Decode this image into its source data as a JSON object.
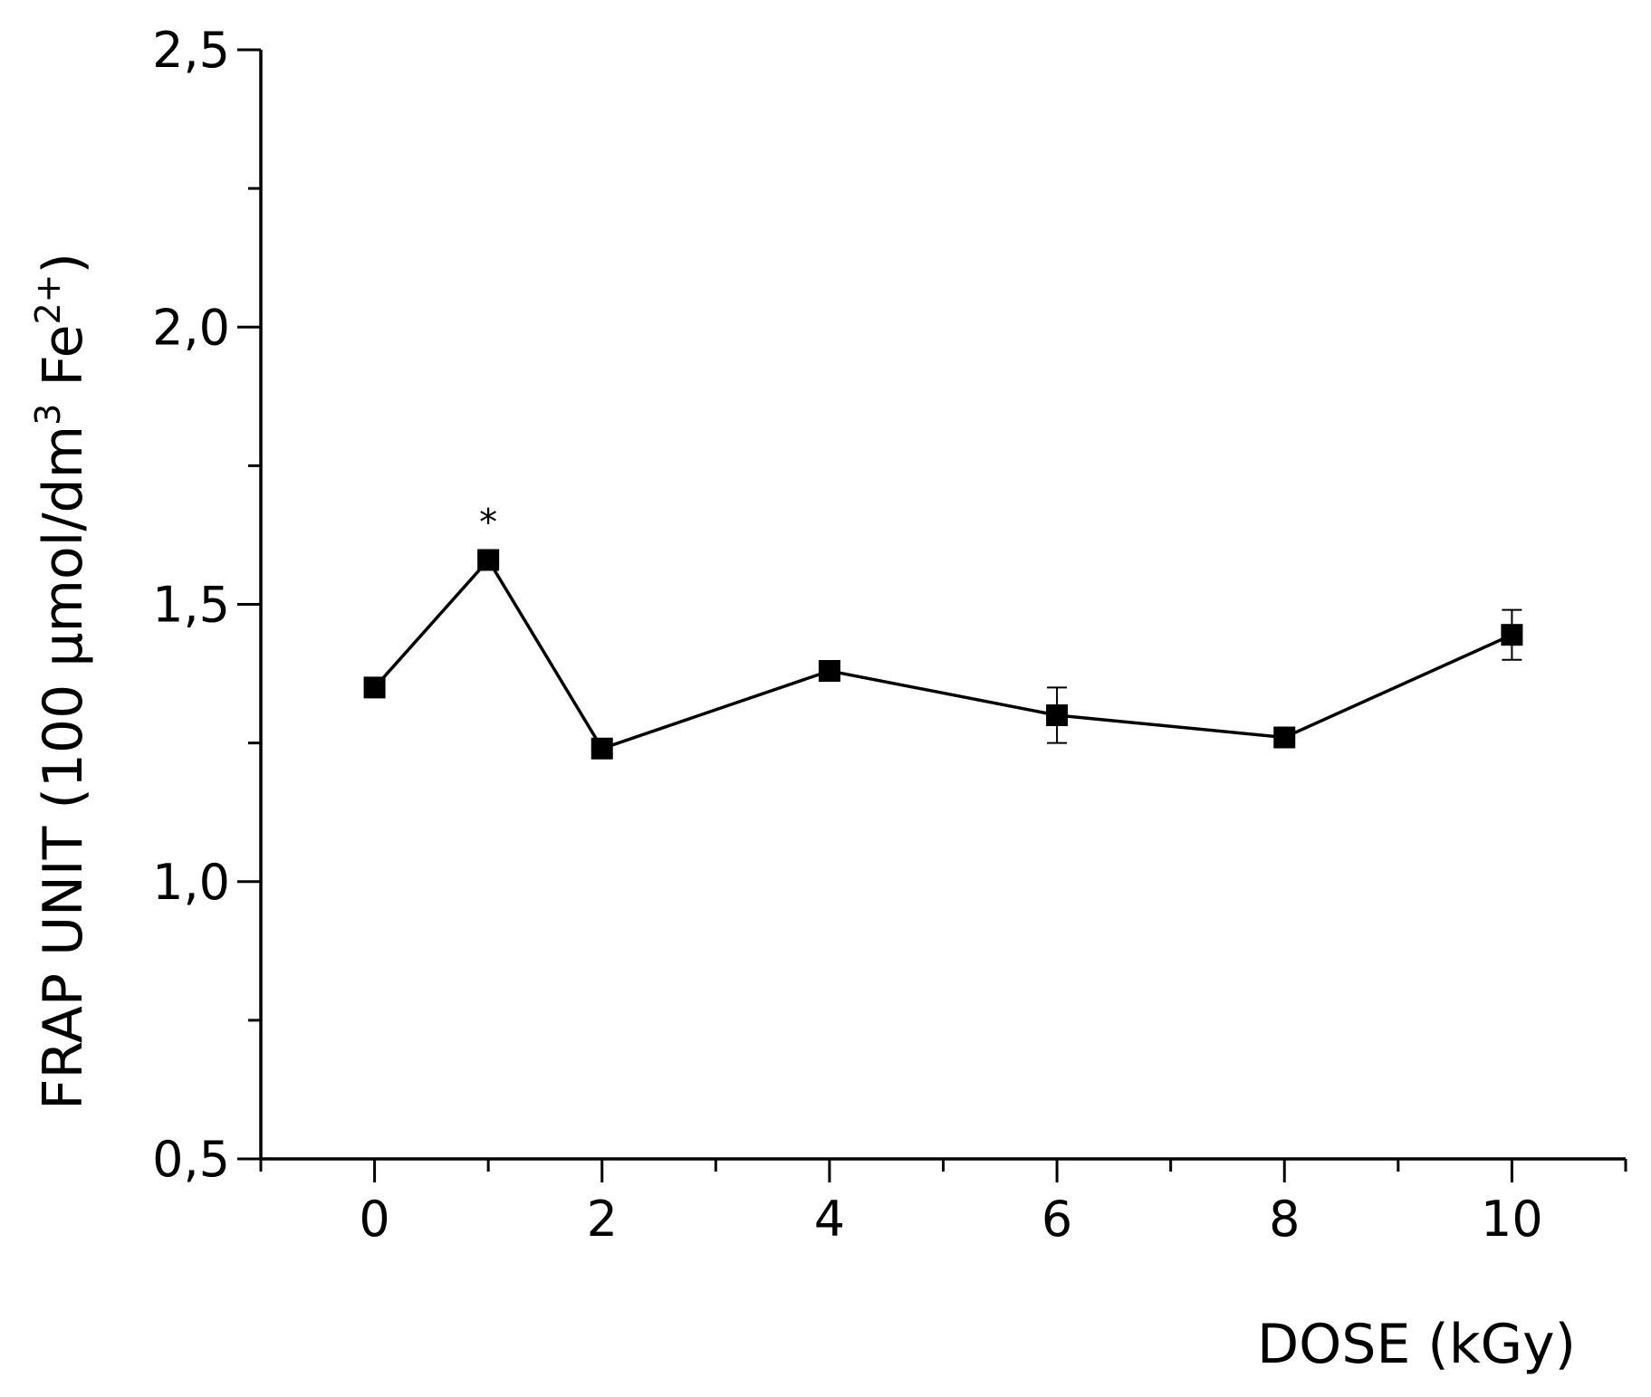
{
  "chart_data": {
    "type": "line",
    "xlabel": "DOSE (kGy)",
    "ylabel_parts": {
      "prefix": "FRAP UNIT (100 μmol/dm",
      "unit_exponent": "3",
      "species": " Fe",
      "charge": "2+",
      "suffix": ")"
    },
    "xlim": [
      -1,
      11
    ],
    "ylim": [
      0.5,
      2.5
    ],
    "x_ticks": [
      {
        "value": 0,
        "label": "0"
      },
      {
        "value": 2,
        "label": "2"
      },
      {
        "value": 4,
        "label": "4"
      },
      {
        "value": 6,
        "label": "6"
      },
      {
        "value": 8,
        "label": "8"
      },
      {
        "value": 10,
        "label": "10"
      }
    ],
    "x_minor_ticks": [
      -1,
      1,
      3,
      5,
      7,
      9,
      11
    ],
    "y_ticks": [
      {
        "value": 0.5,
        "label": "0,5"
      },
      {
        "value": 1.0,
        "label": "1,0"
      },
      {
        "value": 1.5,
        "label": "1,5"
      },
      {
        "value": 2.0,
        "label": "2,0"
      },
      {
        "value": 2.5,
        "label": "2,5"
      }
    ],
    "y_minor_ticks": [
      0.75,
      1.25,
      1.75,
      2.25
    ],
    "grid": false,
    "series": [
      {
        "marker": "square",
        "color": "#000000",
        "points": [
          {
            "x": 0,
            "y": 1.35,
            "err": 0.01
          },
          {
            "x": 1,
            "y": 1.58,
            "err": 0.01
          },
          {
            "x": 2,
            "y": 1.24,
            "err": 0.01
          },
          {
            "x": 4,
            "y": 1.38,
            "err": 0.01
          },
          {
            "x": 6,
            "y": 1.3,
            "err": 0.05
          },
          {
            "x": 8,
            "y": 1.26,
            "err": 0.01
          },
          {
            "x": 10,
            "y": 1.445,
            "err": 0.045
          }
        ]
      }
    ],
    "annotations": [
      {
        "x": 1,
        "y": 1.58,
        "text": "*"
      }
    ]
  }
}
